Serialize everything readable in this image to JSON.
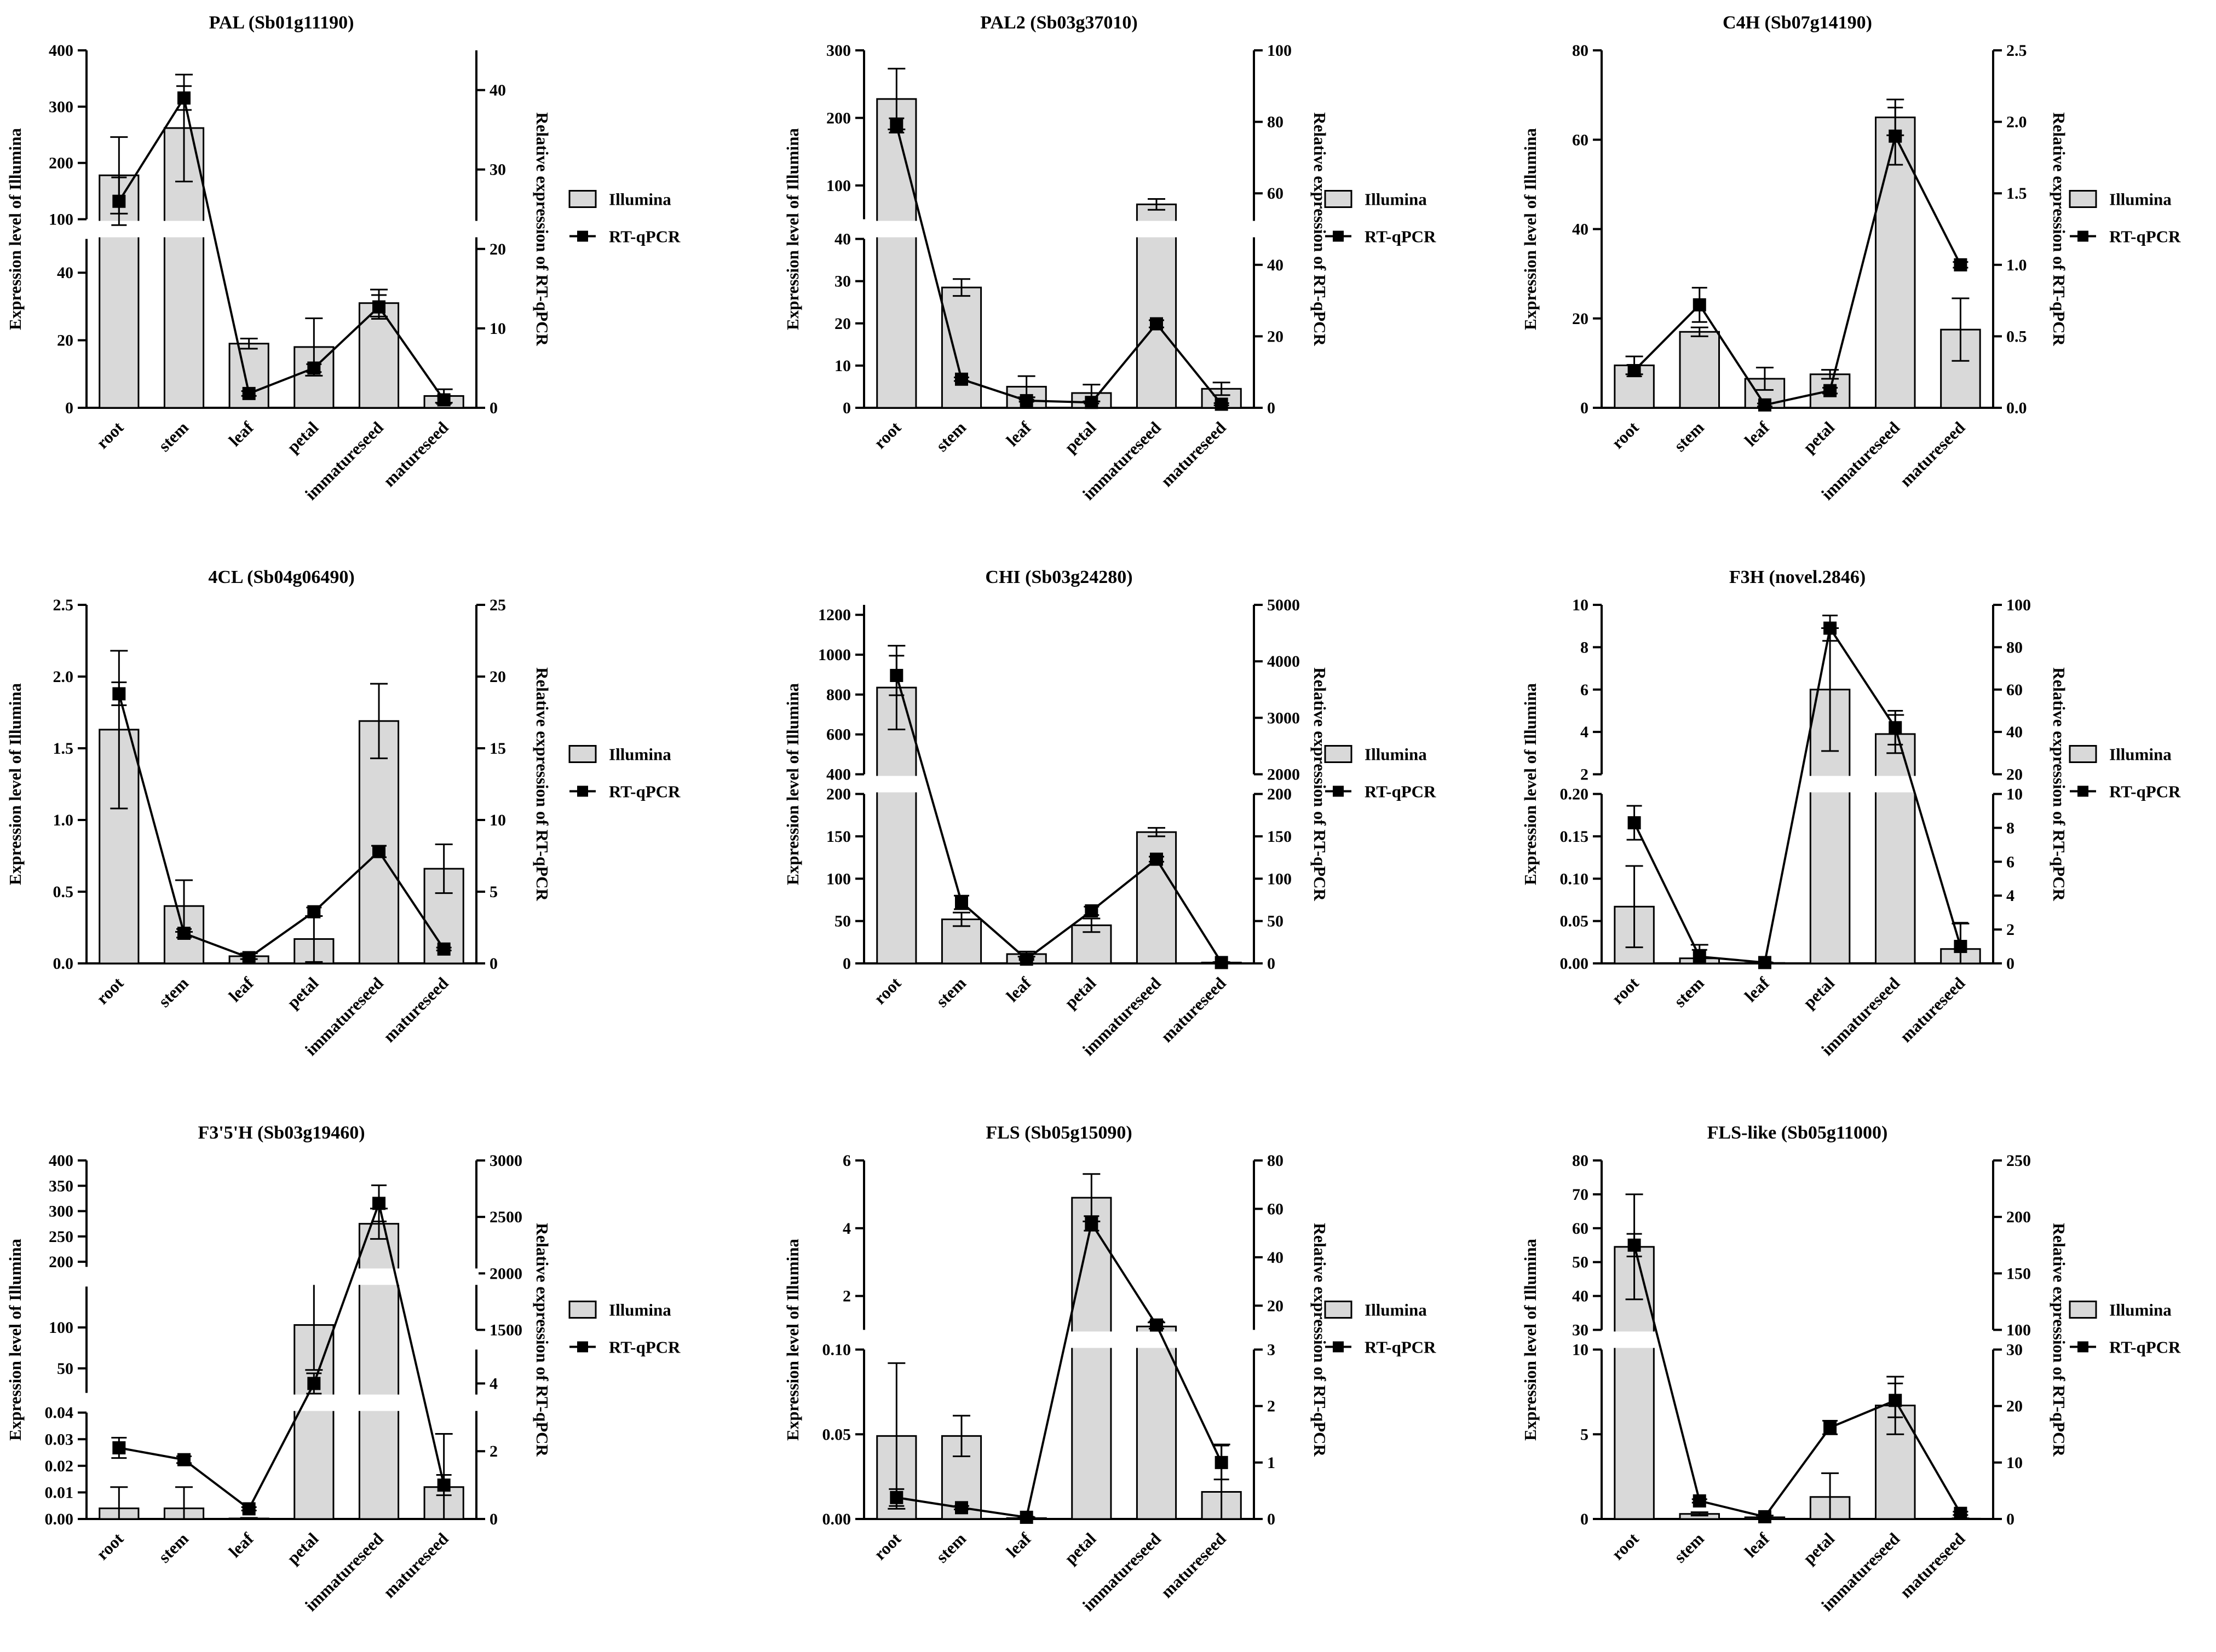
{
  "style": {
    "bar_fill": "#d9d9d9",
    "bar_stroke": "#000000",
    "line_color": "#000000",
    "background": "#ffffff"
  },
  "legend": {
    "bar_label": "Illumina",
    "line_label": "RT-qPCR"
  },
  "chart_data": [
    {
      "type": "bar-line-broken-axis",
      "title": "PAL (Sb01g11190)",
      "ylabel": "Expression level of Illumina",
      "y2label": "Relative expression of RT-qPCR",
      "categories": [
        "root",
        "stem",
        "leaf",
        "petal",
        "immatureseed",
        "matureseed"
      ],
      "left_segments": [
        {
          "range": [
            0,
            50
          ],
          "ticks": [
            0,
            20,
            40
          ],
          "tick_labels": [
            "0",
            "20",
            "40"
          ]
        },
        {
          "range": [
            100,
            400
          ],
          "ticks": [
            100,
            200,
            300,
            400
          ],
          "tick_labels": [
            "100",
            "200",
            "300",
            "400"
          ]
        }
      ],
      "y2": {
        "range": [
          0,
          45
        ],
        "ticks": [
          0,
          10,
          20,
          30,
          40
        ],
        "tick_labels": [
          "0",
          "10",
          "20",
          "30",
          "40"
        ]
      },
      "series": [
        {
          "name": "Illumina",
          "kind": "bar",
          "values": [
            178,
            262,
            19,
            18,
            31,
            3.5
          ],
          "errors": [
            68,
            95,
            1.5,
            8.5,
            4,
            2
          ]
        },
        {
          "name": "RT-qPCR",
          "kind": "line",
          "values": [
            26,
            39,
            1.8,
            5,
            12.7,
            1
          ],
          "errors": [
            3,
            1.5,
            0.3,
            0.5,
            1.5,
            0.5
          ]
        }
      ]
    },
    {
      "type": "bar-line-broken-axis",
      "title": "PAL2 (Sb03g37010)",
      "ylabel": "Expression level of Illumina",
      "y2label": "Relative expression of RT-qPCR",
      "categories": [
        "root",
        "stem",
        "leaf",
        "petal",
        "immatureseed",
        "matureseed"
      ],
      "left_segments": [
        {
          "range": [
            0,
            40
          ],
          "ticks": [
            0,
            10,
            20,
            30,
            40
          ],
          "tick_labels": [
            "0",
            "10",
            "20",
            "30",
            "40"
          ]
        },
        {
          "range": [
            50,
            300
          ],
          "ticks": [
            100,
            200,
            300
          ],
          "tick_labels": [
            "100",
            "200",
            "300"
          ]
        }
      ],
      "y2": {
        "range": [
          0,
          100
        ],
        "ticks": [
          0,
          20,
          40,
          60,
          80,
          100
        ],
        "tick_labels": [
          "0",
          "20",
          "40",
          "60",
          "80",
          "100"
        ]
      },
      "series": [
        {
          "name": "Illumina",
          "kind": "bar",
          "values": [
            228,
            28.5,
            5,
            3.5,
            72,
            4.5
          ],
          "errors": [
            45,
            2,
            2.5,
            2,
            8,
            1.5
          ]
        },
        {
          "name": "RT-qPCR",
          "kind": "line",
          "values": [
            79,
            8,
            2,
            1.5,
            23.5,
            1
          ],
          "errors": [
            2,
            0.5,
            0.3,
            0.3,
            1,
            0.3
          ]
        }
      ]
    },
    {
      "type": "bar-line",
      "title": "C4H (Sb07g14190)",
      "ylabel": "Expression level of Illumina",
      "y2label": "Relative expression of RT-qPCR",
      "categories": [
        "root",
        "stem",
        "leaf",
        "petal",
        "immatureseed",
        "matureseed"
      ],
      "left_segments": [
        {
          "range": [
            0,
            80
          ],
          "ticks": [
            0,
            20,
            40,
            60,
            80
          ],
          "tick_labels": [
            "0",
            "20",
            "40",
            "60",
            "80"
          ]
        }
      ],
      "y2": {
        "range": [
          0,
          2.5
        ],
        "ticks": [
          0,
          0.5,
          1.0,
          1.5,
          2.0,
          2.5
        ],
        "tick_labels": [
          "0.0",
          "0.5",
          "1.0",
          "1.5",
          "2.0",
          "2.5"
        ]
      },
      "series": [
        {
          "name": "Illumina",
          "kind": "bar",
          "values": [
            9.5,
            17,
            6.5,
            7.5,
            65,
            17.5
          ],
          "errors": [
            2,
            1,
            2.5,
            1,
            4,
            7
          ]
        },
        {
          "name": "RT-qPCR",
          "kind": "line",
          "values": [
            0.26,
            0.72,
            0.02,
            0.12,
            1.9,
            1.0
          ],
          "errors": [
            0.04,
            0.12,
            0.01,
            0.02,
            0.2,
            0.02
          ]
        }
      ]
    },
    {
      "type": "bar-line",
      "title": "4CL (Sb04g06490)",
      "ylabel": "Expression level of Illumina",
      "y2label": "Relative expression of RT-qPCR",
      "categories": [
        "root",
        "stem",
        "leaf",
        "petal",
        "immatureseed",
        "matureseed"
      ],
      "left_segments": [
        {
          "range": [
            0,
            2.5
          ],
          "ticks": [
            0,
            0.5,
            1.0,
            1.5,
            2.0,
            2.5
          ],
          "tick_labels": [
            "0.0",
            "0.5",
            "1.0",
            "1.5",
            "2.0",
            "2.5"
          ]
        }
      ],
      "y2": {
        "range": [
          0,
          25
        ],
        "ticks": [
          0,
          5,
          10,
          15,
          20,
          25
        ],
        "tick_labels": [
          "0",
          "5",
          "10",
          "15",
          "20",
          "25"
        ]
      },
      "series": [
        {
          "name": "Illumina",
          "kind": "bar",
          "values": [
            1.63,
            0.4,
            0.05,
            0.17,
            1.69,
            0.66
          ],
          "errors": [
            0.55,
            0.18,
            0.02,
            0.16,
            0.26,
            0.17
          ]
        },
        {
          "name": "RT-qPCR",
          "kind": "line",
          "values": [
            18.8,
            2.1,
            0.4,
            3.6,
            7.8,
            1.0
          ],
          "errors": [
            0.8,
            0.3,
            0.1,
            0.3,
            0.4,
            0.1
          ]
        }
      ]
    },
    {
      "type": "bar-line-broken-axis",
      "title": "CHI (Sb03g24280)",
      "ylabel": "Expression level of Illumina",
      "y2label": "Relative expression of RT-qPCR",
      "categories": [
        "root",
        "stem",
        "leaf",
        "petal",
        "immatureseed",
        "matureseed"
      ],
      "left_segments": [
        {
          "range": [
            0,
            200
          ],
          "ticks": [
            0,
            50,
            100,
            150,
            200
          ],
          "tick_labels": [
            "0",
            "50",
            "100",
            "150",
            "200"
          ]
        },
        {
          "range": [
            400,
            1250
          ],
          "ticks": [
            400,
            600,
            800,
            1000,
            1200
          ],
          "tick_labels": [
            "400",
            "600",
            "800",
            "1000",
            "1200"
          ]
        }
      ],
      "right_segments": [
        {
          "range": [
            0,
            200
          ],
          "ticks": [
            0,
            50,
            100,
            150,
            200
          ],
          "tick_labels": [
            "0",
            "50",
            "100",
            "150",
            "200"
          ]
        },
        {
          "range": [
            2000,
            5000
          ],
          "ticks": [
            2000,
            3000,
            4000,
            5000
          ],
          "tick_labels": [
            "2000",
            "3000",
            "4000",
            "5000"
          ]
        }
      ],
      "series": [
        {
          "name": "Illumina",
          "kind": "bar",
          "values": [
            835,
            52,
            11,
            45,
            155,
            1
          ],
          "errors": [
            210,
            8,
            3,
            8,
            5,
            0.5
          ]
        },
        {
          "name": "RT-qPCR",
          "kind": "line",
          "values": [
            3750,
            72,
            5,
            62,
            123,
            1
          ],
          "errors": [
            350,
            8,
            1,
            5,
            3,
            0.5
          ]
        }
      ]
    },
    {
      "type": "bar-line-broken-axis",
      "title": "F3H (novel.2846)",
      "ylabel": "Expression level of Illumina",
      "y2label": "Relative expression of RT-qPCR",
      "categories": [
        "root",
        "stem",
        "leaf",
        "petal",
        "immatureseed",
        "matureseed"
      ],
      "left_segments": [
        {
          "range": [
            0,
            0.2
          ],
          "ticks": [
            0,
            0.05,
            0.1,
            0.15,
            0.2
          ],
          "tick_labels": [
            "0.00",
            "0.05",
            "0.10",
            "0.15",
            "0.20"
          ]
        },
        {
          "range": [
            2,
            10
          ],
          "ticks": [
            2,
            4,
            6,
            8,
            10
          ],
          "tick_labels": [
            "2",
            "4",
            "6",
            "8",
            "10"
          ]
        }
      ],
      "right_segments": [
        {
          "range": [
            0,
            10
          ],
          "ticks": [
            0,
            2,
            4,
            6,
            8,
            10
          ],
          "tick_labels": [
            "0",
            "2",
            "4",
            "6",
            "8",
            "10"
          ]
        },
        {
          "range": [
            20,
            100
          ],
          "ticks": [
            20,
            40,
            60,
            80,
            100
          ],
          "tick_labels": [
            "20",
            "40",
            "60",
            "80",
            "100"
          ]
        }
      ],
      "series": [
        {
          "name": "Illumina",
          "kind": "bar",
          "values": [
            0.067,
            0.006,
            0.0005,
            6.0,
            3.9,
            0.017
          ],
          "errors": [
            0.048,
            0.016,
            0.0005,
            2.9,
            0.9,
            0.03
          ]
        },
        {
          "name": "RT-qPCR",
          "kind": "line",
          "values": [
            8.3,
            0.4,
            0.05,
            89,
            42,
            1.0
          ],
          "errors": [
            1.0,
            0.4,
            0.02,
            6,
            8,
            1.4
          ]
        }
      ]
    },
    {
      "type": "bar-line-broken-axis",
      "title": "F3'5'H (Sb03g19460)",
      "ylabel": "Expression level of Illumina",
      "y2label": "Relative expression of RT-qPCR",
      "categories": [
        "root",
        "stem",
        "leaf",
        "petal",
        "immatureseed",
        "matureseed"
      ],
      "left_segments": [
        {
          "range": [
            0,
            0.04
          ],
          "ticks": [
            0,
            0.01,
            0.02,
            0.03,
            0.04
          ],
          "tick_labels": [
            "0.00",
            "0.01",
            "0.02",
            "0.03",
            "0.04"
          ]
        },
        {
          "range": [
            20,
            150
          ],
          "ticks": [
            50,
            100
          ],
          "tick_labels": [
            "50",
            "100"
          ]
        },
        {
          "range": [
            190,
            400
          ],
          "ticks": [
            200,
            250,
            300,
            350,
            400
          ],
          "tick_labels": [
            "200",
            "250",
            "300",
            "350",
            "400"
          ]
        }
      ],
      "right_segments": [
        {
          "range": [
            0,
            5
          ],
          "ticks": [
            0,
            2,
            4
          ],
          "tick_labels": [
            "0",
            "2",
            "4"
          ]
        },
        {
          "range": [
            1500,
            3000
          ],
          "ticks": [
            1500,
            2000,
            2500,
            3000
          ],
          "tick_labels": [
            "1500",
            "2000",
            "2500",
            "3000"
          ]
        }
      ],
      "series": [
        {
          "name": "Illumina",
          "kind": "bar",
          "values": [
            0.004,
            0.004,
            0.0002,
            103,
            275,
            0.012
          ],
          "errors": [
            0.008,
            0.008,
            0.0002,
            55,
            30,
            0.02
          ]
        },
        {
          "name": "RT-qPCR",
          "kind": "line",
          "values": [
            2.1,
            1.75,
            0.3,
            4.0,
            2620,
            1.0
          ],
          "errors": [
            0.3,
            0.1,
            0.05,
            0.3,
            160,
            0.3
          ]
        }
      ]
    },
    {
      "type": "bar-line-broken-axis",
      "title": "FLS (Sb05g15090)",
      "ylabel": "Expression level of Illumina",
      "y2label": "Relative expression of RT-qPCR",
      "categories": [
        "root",
        "stem",
        "leaf",
        "petal",
        "immatureseed",
        "matureseed"
      ],
      "left_segments": [
        {
          "range": [
            0,
            0.1
          ],
          "ticks": [
            0,
            0.05,
            0.1
          ],
          "tick_labels": [
            "0.00",
            "0.05",
            "0.10"
          ]
        },
        {
          "range": [
            1,
            6
          ],
          "ticks": [
            2,
            4,
            6
          ],
          "tick_labels": [
            "2",
            "4",
            "6"
          ]
        }
      ],
      "right_segments": [
        {
          "range": [
            0,
            3
          ],
          "ticks": [
            0,
            1,
            2,
            3
          ],
          "tick_labels": [
            "0",
            "1",
            "2",
            "3"
          ]
        },
        {
          "range": [
            10,
            80
          ],
          "ticks": [
            20,
            40,
            60,
            80
          ],
          "tick_labels": [
            "20",
            "40",
            "60",
            "80"
          ]
        }
      ],
      "series": [
        {
          "name": "Illumina",
          "kind": "bar",
          "values": [
            0.049,
            0.049,
            0.0005,
            4.9,
            1.1,
            0.016
          ],
          "errors": [
            0.043,
            0.012,
            0.0005,
            0.7,
            0.12,
            0.028
          ]
        },
        {
          "name": "RT-qPCR",
          "kind": "line",
          "values": [
            0.38,
            0.2,
            0.03,
            54,
            12,
            1.0
          ],
          "errors": [
            0.15,
            0.03,
            0.01,
            3,
            1.5,
            0.3
          ]
        }
      ]
    },
    {
      "type": "bar-line-broken-axis",
      "title": "FLS-like (Sb05g11000)",
      "ylabel": "Expression level of Illumina",
      "y2label": "Relative expression of RT-qPCR",
      "categories": [
        "root",
        "stem",
        "leaf",
        "petal",
        "immatureseed",
        "matureseed"
      ],
      "left_segments": [
        {
          "range": [
            0,
            10
          ],
          "ticks": [
            0,
            5,
            10
          ],
          "tick_labels": [
            "0",
            "5",
            "10"
          ]
        },
        {
          "range": [
            30,
            80
          ],
          "ticks": [
            30,
            40,
            50,
            60,
            70,
            80
          ],
          "tick_labels": [
            "30",
            "40",
            "50",
            "60",
            "70",
            "80"
          ]
        }
      ],
      "right_segments": [
        {
          "range": [
            0,
            30
          ],
          "ticks": [
            0,
            10,
            20,
            30
          ],
          "tick_labels": [
            "0",
            "10",
            "20",
            "30"
          ]
        },
        {
          "range": [
            100,
            250
          ],
          "ticks": [
            100,
            150,
            200,
            250
          ],
          "tick_labels": [
            "100",
            "150",
            "200",
            "250"
          ]
        }
      ],
      "series": [
        {
          "name": "Illumina",
          "kind": "bar",
          "values": [
            54.5,
            0.3,
            0.1,
            1.3,
            6.7,
            0.02
          ],
          "errors": [
            15.5,
            0.1,
            0.1,
            1.4,
            1.7,
            0.02
          ]
        },
        {
          "name": "RT-qPCR",
          "kind": "line",
          "values": [
            175,
            3.2,
            0.4,
            16.2,
            21,
            1.0
          ],
          "errors": [
            10,
            0.3,
            0.2,
            1.2,
            3,
            0.3
          ]
        }
      ]
    }
  ]
}
